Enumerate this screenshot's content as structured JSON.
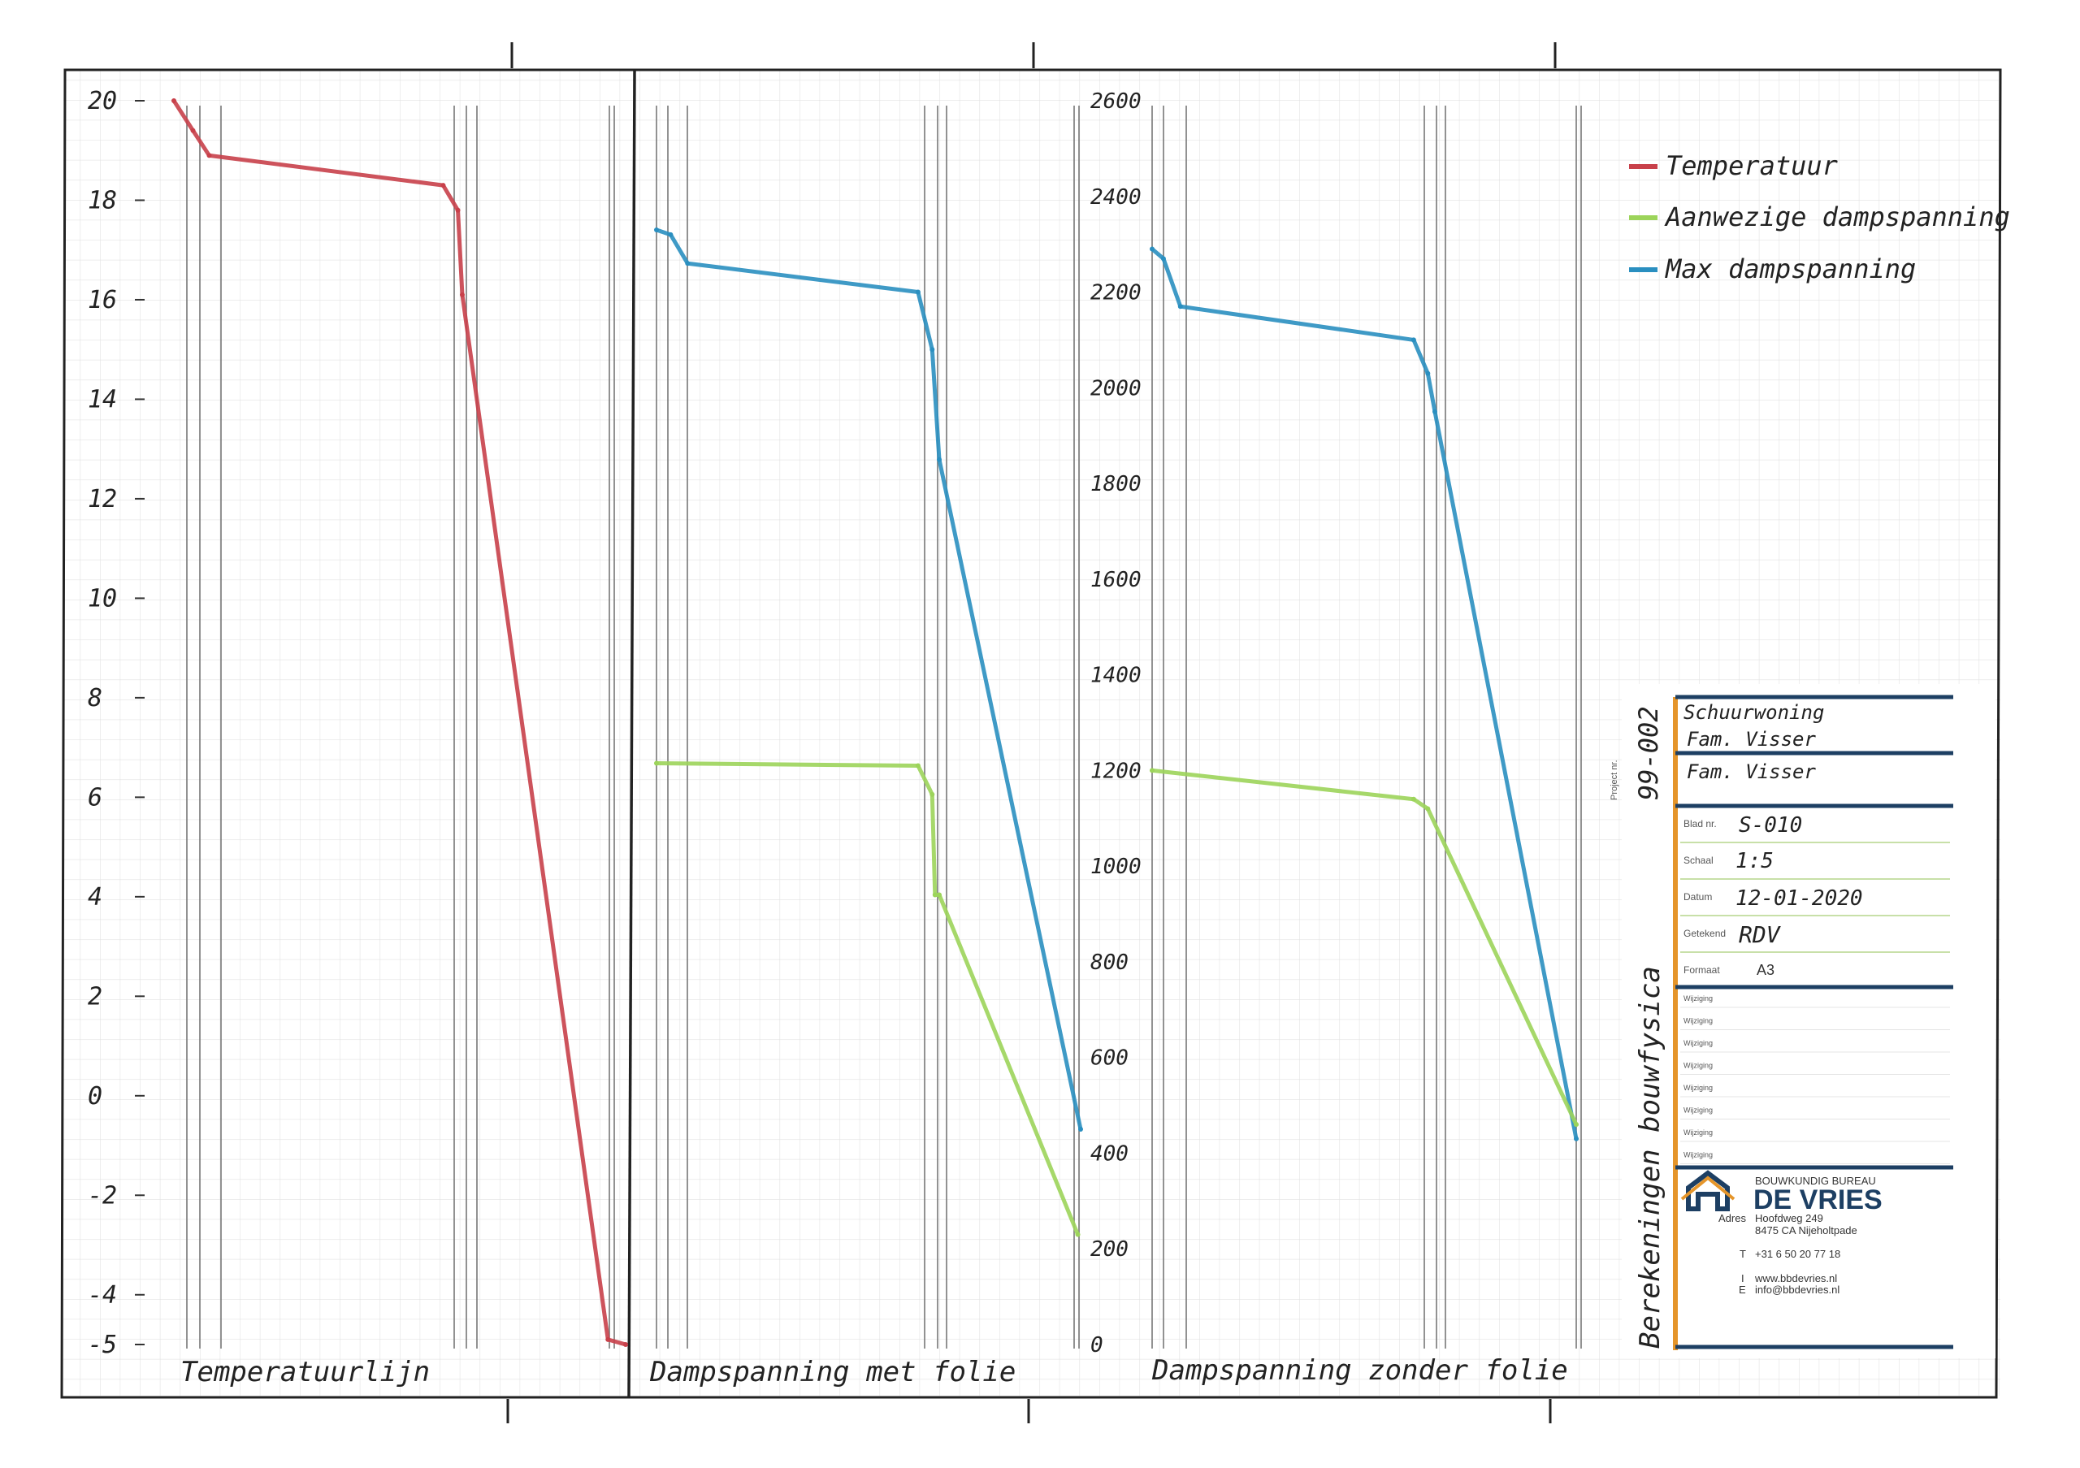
{
  "chart_data": [
    {
      "type": "line",
      "title": "",
      "xlabel": "Temperatuurlijn",
      "ylabel": "",
      "ylim": [
        -5,
        20
      ],
      "yticks": [
        "20",
        "18",
        "16",
        "14",
        "12",
        "10",
        "8",
        "6",
        "4",
        "2",
        "0",
        "-2",
        "-4",
        "-5"
      ],
      "series": [
        {
          "name": "Temperatuur",
          "color": "#c8404a",
          "points": [
            [
              0.0,
              20.0
            ],
            [
              0.13,
              19.4
            ],
            [
              0.24,
              18.9
            ],
            [
              1.83,
              18.3
            ],
            [
              1.93,
              17.8
            ],
            [
              1.96,
              16.1
            ],
            [
              2.95,
              -4.9
            ],
            [
              3.07,
              -5.0
            ]
          ]
        }
      ]
    },
    {
      "type": "line",
      "title": "",
      "xlabel": "Dampspanning met folie",
      "ylabel": "",
      "ylim": [
        0,
        2600
      ],
      "yticks": [
        "2600",
        "2400",
        "2200",
        "2000",
        "1800",
        "1600",
        "1400",
        "1200",
        "1000",
        "800",
        "600",
        "400",
        "200",
        "0"
      ],
      "series": [
        {
          "name": "Max dampspanning",
          "color": "#2a8fc0",
          "points": [
            [
              0.0,
              2330
            ],
            [
              0.1,
              2320
            ],
            [
              0.22,
              2260
            ],
            [
              1.85,
              2200
            ],
            [
              1.95,
              2080
            ],
            [
              2.0,
              1850
            ],
            [
              3.0,
              450
            ]
          ]
        },
        {
          "name": "Aanwezige dampspanning",
          "color": "#9cd45a",
          "points": [
            [
              0.0,
              1215
            ],
            [
              1.85,
              1210
            ],
            [
              1.95,
              1150
            ],
            [
              1.97,
              940
            ],
            [
              2.0,
              940
            ],
            [
              2.98,
              230
            ]
          ]
        }
      ]
    },
    {
      "type": "line",
      "title": "",
      "xlabel": "Dampspanning zonder folie",
      "ylabel": "",
      "ylim": [
        0,
        2600
      ],
      "series": [
        {
          "name": "Max dampspanning",
          "color": "#2a8fc0",
          "points": [
            [
              0.0,
              2290
            ],
            [
              0.08,
              2270
            ],
            [
              0.2,
              2170
            ],
            [
              1.85,
              2100
            ],
            [
              1.95,
              2030
            ],
            [
              2.0,
              1950
            ],
            [
              3.0,
              430
            ]
          ]
        },
        {
          "name": "Aanwezige dampspanning",
          "color": "#9cd45a",
          "points": [
            [
              0.0,
              1200
            ],
            [
              1.85,
              1140
            ],
            [
              1.95,
              1120
            ],
            [
              3.0,
              460
            ]
          ]
        }
      ]
    }
  ],
  "legend": {
    "items": [
      {
        "label": "Temperatuur",
        "color": "#c8404a"
      },
      {
        "label": "Aanwezige dampspanning",
        "color": "#9cd45a"
      },
      {
        "label": "Max dampspanning",
        "color": "#2a8fc0"
      }
    ]
  },
  "titleblock": {
    "vertical_title": "Berekeningen bouwfysica",
    "project_label": "Project nr.",
    "project_value": "99-002",
    "project_name_1": "Schuurwoning",
    "project_name_2": "Fam. Visser",
    "client": "Fam. Visser",
    "fields": [
      {
        "label": "Blad nr.",
        "value": "S-010"
      },
      {
        "label": "Schaal",
        "value": "1:5"
      },
      {
        "label": "Datum",
        "value": "12-01-2020"
      },
      {
        "label": "Getekend",
        "value": "RDV"
      },
      {
        "label": "Formaat",
        "value": "A3"
      }
    ],
    "wijziging_label": "Wijziging",
    "company_small": "BOUWKUNDIG BUREAU",
    "company_name": "DE VRIES",
    "address_label": "Adres",
    "address_line1": "Hoofdweg 249",
    "address_line2": "8475 CA Nijeholtpade",
    "phone_label": "T",
    "phone": "+31 6 50 20 77 18",
    "web_label": "I",
    "web": "www.bbdevries.nl",
    "email_label": "E",
    "email": "info@bbdevries.nl",
    "accent": "#e5952a",
    "navy": "#1d3f63"
  }
}
